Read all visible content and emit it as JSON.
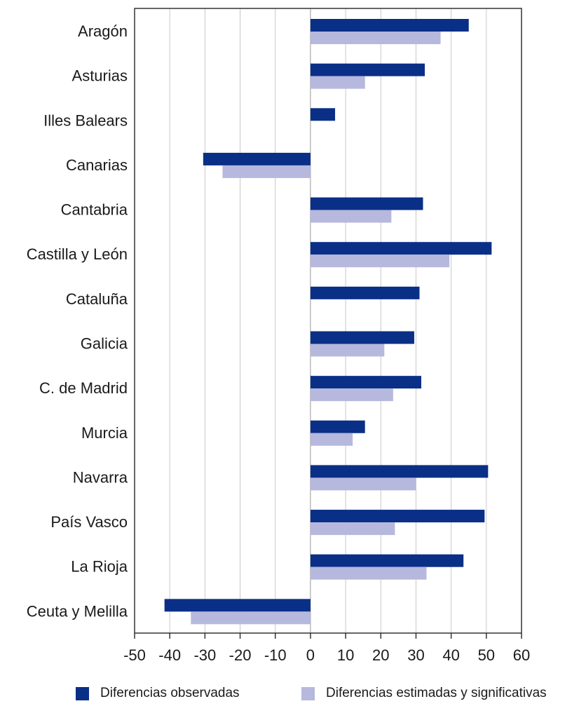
{
  "chart_data": {
    "type": "bar",
    "orientation": "horizontal",
    "categories": [
      "Aragón",
      "Asturias",
      "Illes Balears",
      "Canarias",
      "Cantabria",
      "Castilla y León",
      "Cataluña",
      "Galicia",
      "C. de Madrid",
      "Murcia",
      "Navarra",
      "País Vasco",
      "La Rioja",
      "Ceuta y Melilla"
    ],
    "series": [
      {
        "name": "Diferencias observadas",
        "color": "#0a2f87",
        "values": [
          45,
          32.5,
          7,
          -30.5,
          32,
          51.5,
          31,
          29.5,
          31.5,
          15.5,
          50.5,
          49.5,
          43.5,
          -41.5
        ]
      },
      {
        "name": "Diferencias estimadas y significativas",
        "color": "#b7b8dd",
        "values": [
          37,
          15.5,
          null,
          -25,
          23,
          39.5,
          null,
          21,
          23.5,
          12,
          30,
          24,
          33,
          -34
        ]
      }
    ],
    "xlim": [
      -50,
      60
    ],
    "xticks": [
      -50,
      -40,
      -30,
      -20,
      -10,
      0,
      10,
      20,
      30,
      40,
      50,
      60
    ],
    "grid": "vertical",
    "legend_position": "bottom",
    "title": "",
    "xlabel": "",
    "ylabel": ""
  }
}
